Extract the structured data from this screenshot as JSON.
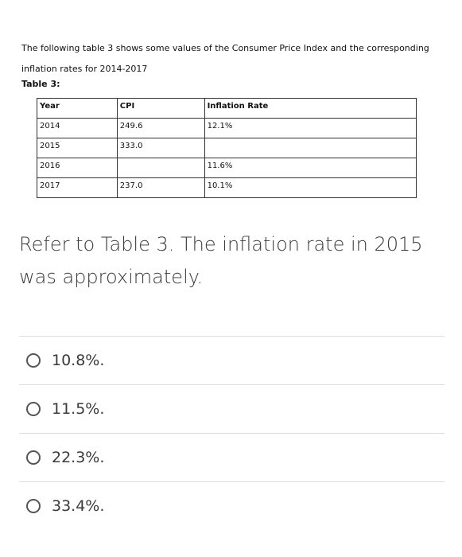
{
  "intro": {
    "line1": "The following table 3 shows some values of the Consumer Price Index and the corresponding",
    "line2": "inflation rates for 2014-2017"
  },
  "table": {
    "label": "Table 3:",
    "headers": [
      "Year",
      "CPI",
      "Inflation Rate"
    ],
    "rows": [
      [
        "2014",
        "249.6",
        "12.1%"
      ],
      [
        "2015",
        "333.0",
        ""
      ],
      [
        "2016",
        "",
        "11.6%"
      ],
      [
        "2017",
        "237.0",
        "10.1%"
      ]
    ]
  },
  "question": {
    "text": "Refer to Table 3. The inflation rate in 2015 was approximately."
  },
  "options": [
    {
      "label": "10.8%."
    },
    {
      "label": "11.5%."
    },
    {
      "label": "22.3%."
    },
    {
      "label": "33.4%."
    }
  ]
}
